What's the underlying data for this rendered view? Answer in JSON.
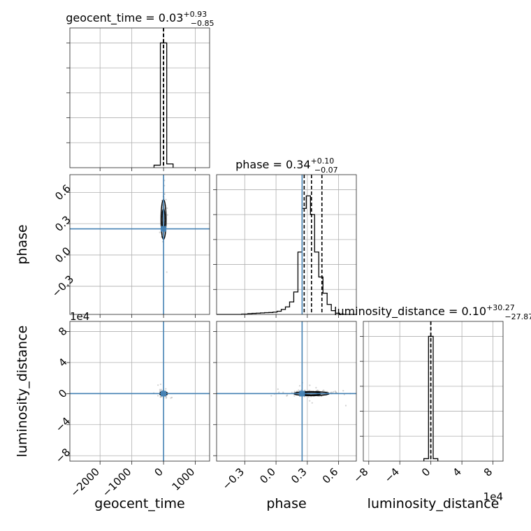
{
  "chart_data": {
    "type": "corner",
    "parameters": [
      "geocent_time",
      "phase",
      "luminosity_distance"
    ],
    "axis_labels": [
      "geocent_time",
      "phase",
      "luminosity_distance"
    ],
    "truths": [
      0,
      0.25,
      0
    ],
    "offset_labels": {
      "luminosity_distance": "1e4"
    },
    "titles": [
      {
        "param": "geocent_time",
        "text": "geocent_time = 0.03",
        "plus": "+0.93",
        "minus": "−0.85"
      },
      {
        "param": "phase",
        "text": "phase = 0.34",
        "plus": "+0.10",
        "minus": "−0.07"
      },
      {
        "param": "luminosity_distance",
        "text": "luminosity_distance = 0.10",
        "plus": "+30.27",
        "minus": "−27.87"
      }
    ],
    "ranges": {
      "geocent_time": [
        -2950,
        1450
      ],
      "phase": [
        -0.57,
        0.77
      ],
      "luminosity_distance": [
        -87000,
        93000
      ]
    },
    "ticks": {
      "geocent_time": {
        "values": [
          -2000,
          -1000,
          0,
          1000
        ],
        "labels": [
          "−2000",
          "−1000",
          "0",
          "1000"
        ]
      },
      "phase": {
        "values": [
          -0.3,
          0.0,
          0.3,
          0.6
        ],
        "labels": [
          "−0.3",
          "0.0",
          "0.3",
          "0.6"
        ]
      },
      "luminosity_distance": {
        "values": [
          -80000,
          -40000,
          0,
          40000,
          80000
        ],
        "labels": [
          "−8",
          "−4",
          "0",
          "4",
          "8"
        ]
      }
    },
    "diagonal_histograms": [
      {
        "param": "geocent_time",
        "bins": [
          -300,
          -100,
          100,
          300
        ],
        "counts": [
          0.02,
          1.0,
          0.03
        ],
        "quantiles": [
          -0.82,
          0.03,
          0.96
        ],
        "ymax": 1.12
      },
      {
        "param": "phase",
        "bins": [
          -0.57,
          -0.33,
          -0.27,
          -0.23,
          -0.19,
          -0.15,
          -0.11,
          -0.07,
          -0.03,
          0.01,
          0.05,
          0.09,
          0.13,
          0.17,
          0.21,
          0.25,
          0.29,
          0.33,
          0.37,
          0.41,
          0.45,
          0.49,
          0.53,
          0.57,
          0.61,
          0.65,
          0.77
        ],
        "counts": [
          0,
          0.003,
          0.006,
          0.008,
          0.01,
          0.012,
          0.014,
          0.015,
          0.018,
          0.025,
          0.04,
          0.06,
          0.1,
          0.18,
          0.5,
          0.85,
          0.95,
          0.8,
          0.5,
          0.3,
          0.17,
          0.08,
          0.03,
          0.01,
          0.003,
          0
        ],
        "quantiles": [
          0.27,
          0.34,
          0.44
        ],
        "ymax": 1.12
      },
      {
        "param": "luminosity_distance",
        "bins": [
          -9000,
          -3000,
          3000,
          9000
        ],
        "counts": [
          0.02,
          1.0,
          0.02
        ],
        "quantiles": [
          -27.77,
          0.1,
          30.37
        ],
        "ymax": 1.12
      }
    ],
    "scatter_summaries": [
      {
        "x": "geocent_time",
        "y": "phase",
        "x_center": 0,
        "y_center": 0.34,
        "x_spread": 25,
        "y_spread": 0.09,
        "contour_levels": [
          [
            40,
            0.1
          ],
          [
            80,
            0.19
          ]
        ]
      },
      {
        "x": "geocent_time",
        "y": "luminosity_distance",
        "x_center": 0,
        "y_center": 0,
        "x_spread": 30,
        "y_spread": 1200,
        "contour_levels": [
          [
            60,
            1500
          ],
          [
            120,
            2500
          ]
        ]
      },
      {
        "x": "phase",
        "y": "luminosity_distance",
        "x_center": 0.34,
        "y_center": 0,
        "x_spread": 0.08,
        "y_spread": 1800,
        "contour_levels": [
          [
            0.09,
            1600
          ],
          [
            0.17,
            2600
          ]
        ]
      }
    ],
    "grid": true,
    "legend": "none"
  }
}
